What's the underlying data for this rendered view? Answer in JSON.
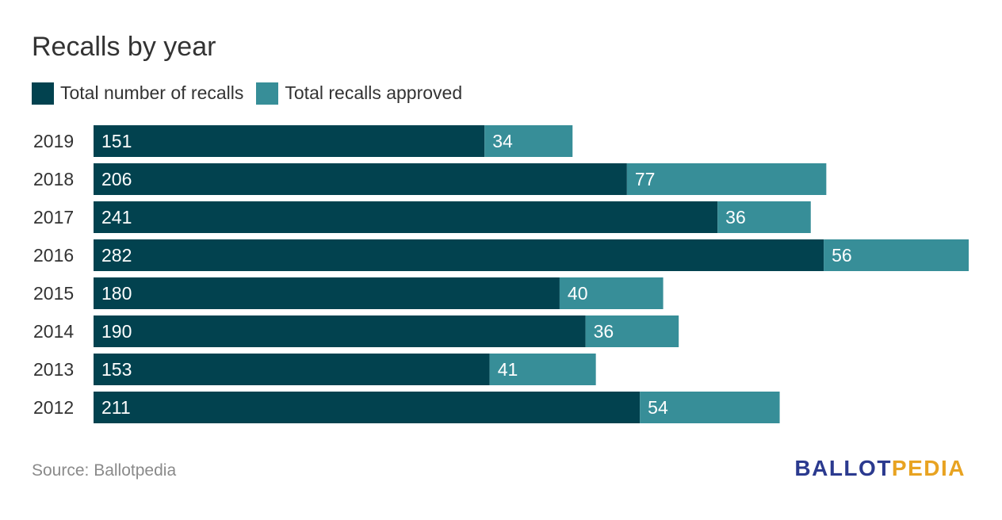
{
  "title": "Recalls by year",
  "legend": {
    "items": [
      {
        "label": "Total number of recalls",
        "color": "#02424f"
      },
      {
        "label": "Total recalls approved",
        "color": "#378e98"
      }
    ]
  },
  "source": "Source: Ballotpedia",
  "logo": {
    "part1": "BALLOT",
    "part2": "PEDIA"
  },
  "chart_data": {
    "type": "bar",
    "orientation": "horizontal",
    "stacked": true,
    "title": "Recalls by year",
    "categories": [
      "2019",
      "2018",
      "2017",
      "2016",
      "2015",
      "2014",
      "2013",
      "2012"
    ],
    "series": [
      {
        "name": "Total number of recalls",
        "color": "#02424f",
        "values": [
          151,
          206,
          241,
          282,
          180,
          190,
          153,
          211
        ]
      },
      {
        "name": "Total recalls approved",
        "color": "#378e98",
        "values": [
          34,
          77,
          36,
          56,
          40,
          36,
          41,
          54
        ]
      }
    ],
    "xlim": [
      0,
      338
    ],
    "grid": false,
    "legend_position": "top-left"
  }
}
